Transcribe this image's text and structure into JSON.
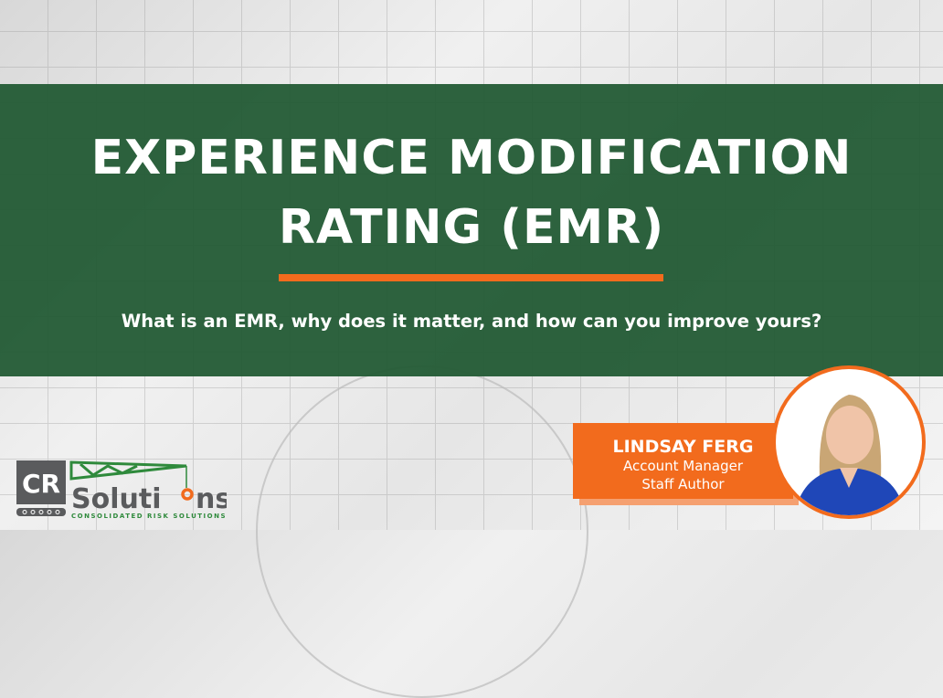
{
  "title_lines": [
    "EXPERIENCE MODIFICATION",
    "RATING (EMR)"
  ],
  "subtitle": "What is an EMR, why does it matter, and how can you improve yours?",
  "author": {
    "name": "LINDSAY FERG",
    "role": "Account Manager",
    "byline": "Staff Author"
  },
  "logo": {
    "mark": "CR",
    "word": "Solutions",
    "tagline": "CONSOLIDATED RISK SOLUTIONS"
  },
  "colors": {
    "green": "#245c36",
    "orange": "#f26b1d",
    "gray": "#5a5b5d"
  }
}
